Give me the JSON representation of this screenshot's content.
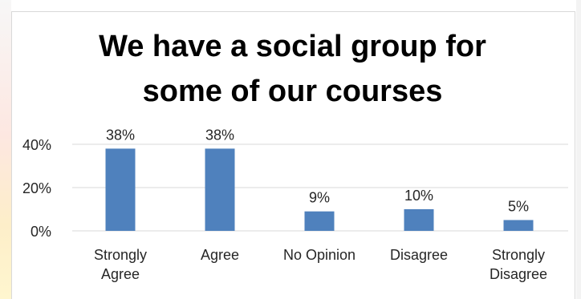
{
  "chart_data": {
    "type": "bar",
    "title": "We have a social group for\nsome of our courses",
    "categories": [
      [
        "Strongly",
        "Agree"
      ],
      [
        "Agree"
      ],
      [
        "No Opinion"
      ],
      [
        "Disagree"
      ],
      [
        "Strongly",
        "Disagree"
      ]
    ],
    "values": [
      38,
      38,
      9,
      10,
      5
    ],
    "data_labels": [
      "38%",
      "38%",
      "9%",
      "10%",
      "5%"
    ],
    "y_ticks": [
      0,
      20,
      40
    ],
    "y_tick_labels": [
      "0%",
      "20%",
      "40%"
    ],
    "ylim": [
      0,
      40
    ],
    "grid": true,
    "legend": "none",
    "bar_color": "#4F81BD",
    "xlabel": "",
    "ylabel": ""
  }
}
